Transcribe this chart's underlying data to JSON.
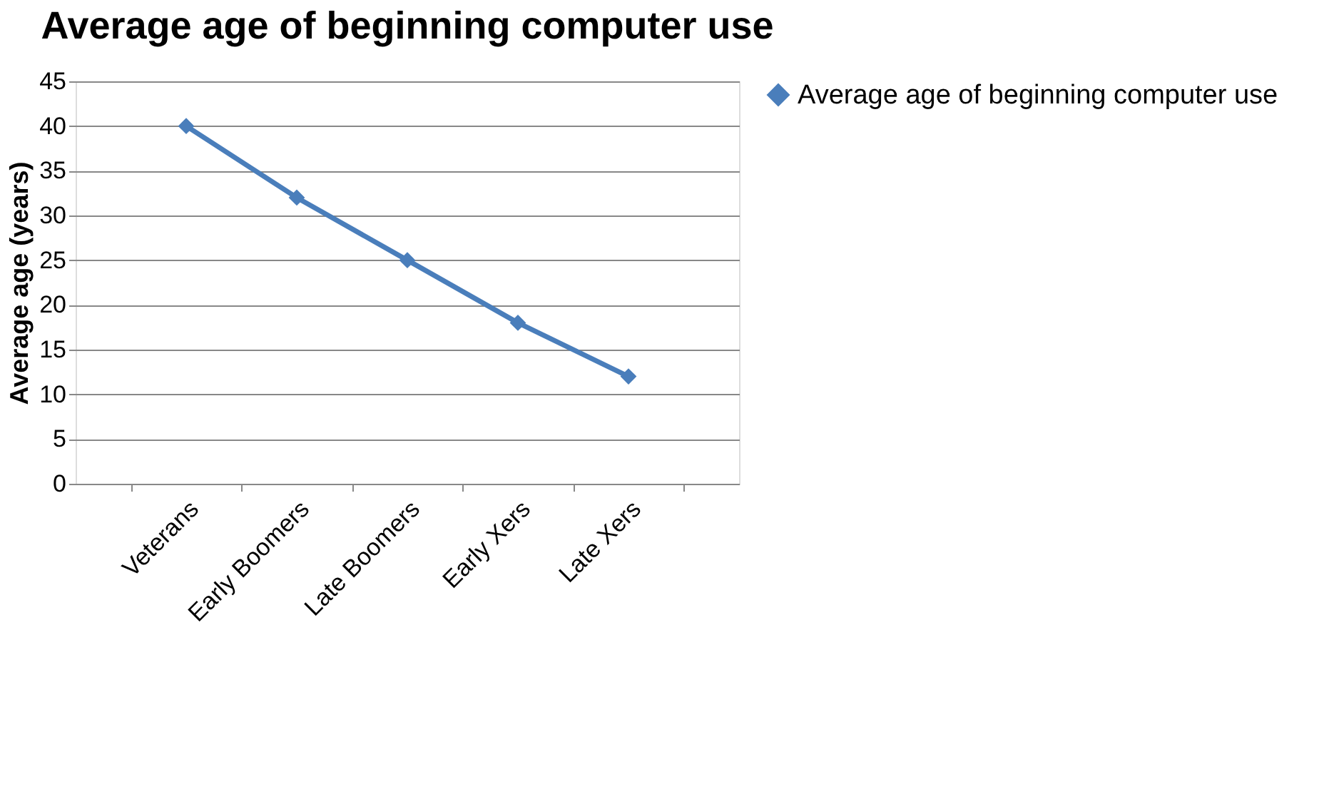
{
  "chart_data": {
    "type": "line",
    "title": "Average age of beginning computer use",
    "ylabel": "Average age (years)",
    "categories": [
      "Veterans",
      "Early Boomers",
      "Late Boomers",
      "Early Xers",
      "Late Xers"
    ],
    "series": [
      {
        "name": "Average age of beginning computer use",
        "color": "#4a7ebb",
        "values": [
          40,
          32,
          25,
          18,
          12
        ]
      }
    ],
    "ylim": [
      0,
      45
    ],
    "yticks": [
      0,
      5,
      10,
      15,
      20,
      25,
      30,
      35,
      40,
      45
    ],
    "grid": "y",
    "legend": "right",
    "marker": "diamond",
    "line_style": "solid"
  }
}
